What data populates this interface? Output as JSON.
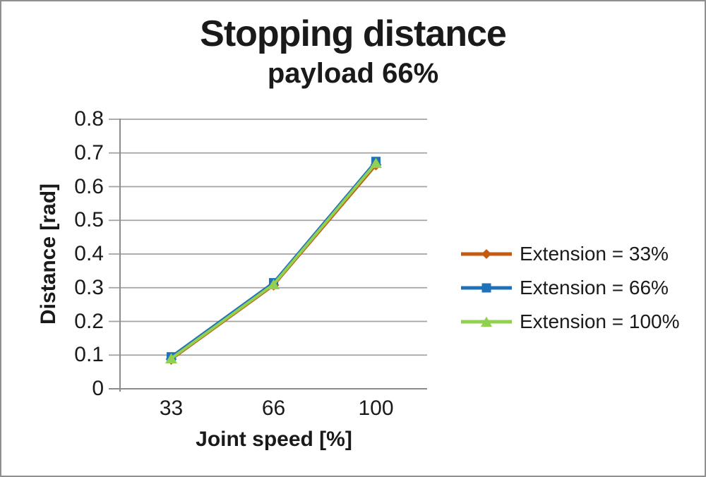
{
  "title": "Stopping distance",
  "subtitle": "payload 66%",
  "chart_data": {
    "type": "line",
    "title": "Stopping distance",
    "subtitle": "payload 66%",
    "categories": [
      33,
      66,
      100
    ],
    "x_tick_labels": [
      "33",
      "66",
      "100"
    ],
    "xlabel": "Joint speed [%]",
    "ylabel": "Distance [rad]",
    "ylim": [
      0,
      0.8
    ],
    "y_ticks": [
      0,
      0.1,
      0.2,
      0.3,
      0.4,
      0.5,
      0.6,
      0.7,
      0.8
    ],
    "y_tick_labels": [
      "0",
      "0.1",
      "0.2",
      "0.3",
      "0.4",
      "0.5",
      "0.6",
      "0.7",
      "0.8"
    ],
    "grid": "horizontal",
    "legend_position": "right",
    "series": [
      {
        "name": "Extension = 33%",
        "marker": "diamond",
        "color": "#C55A11",
        "values": [
          0.088,
          0.308,
          0.665
        ]
      },
      {
        "name": "Extension = 66%",
        "marker": "square",
        "color": "#1F72B8",
        "values": [
          0.095,
          0.315,
          0.675
        ]
      },
      {
        "name": "Extension = 100%",
        "marker": "triangle",
        "color": "#92D050",
        "values": [
          0.09,
          0.31,
          0.67
        ]
      }
    ],
    "colors": {
      "gridline": "#A3A3A3",
      "axis": "#8C8C8C",
      "text": "#1a1a1a",
      "background": "#ffffff"
    }
  }
}
